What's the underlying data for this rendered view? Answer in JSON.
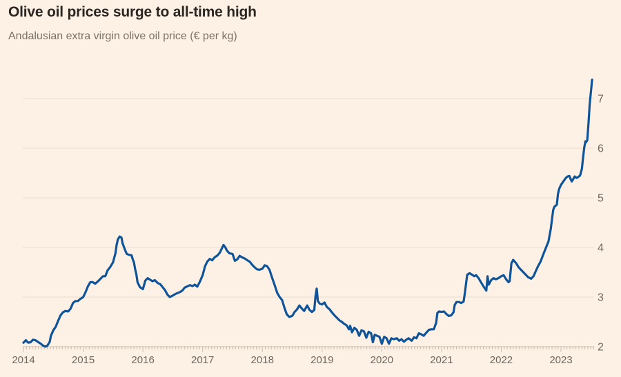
{
  "chart_data": {
    "type": "line",
    "title": "Olive oil prices surge to all-time high",
    "subtitle": "Andalusian extra virgin olive oil price (€ per kg)",
    "xlabel": "",
    "ylabel": "€ per kg",
    "x_range": [
      2014,
      2023.55
    ],
    "y_range": [
      2,
      7.5
    ],
    "x_ticks": [
      2014,
      2015,
      2016,
      2017,
      2018,
      2019,
      2020,
      2021,
      2022,
      2023
    ],
    "y_ticks": [
      2,
      3,
      4,
      5,
      6,
      7
    ],
    "grid": "horizontal",
    "legend": "none",
    "line_color": "#0f5499",
    "background_color": "#fdf0e4",
    "series": [
      {
        "name": "Andalusian extra virgin olive oil price (€ per kg)",
        "points": [
          [
            2014.0,
            2.08
          ],
          [
            2014.04,
            2.13
          ],
          [
            2014.08,
            2.08
          ],
          [
            2014.12,
            2.09
          ],
          [
            2014.16,
            2.14
          ],
          [
            2014.2,
            2.13
          ],
          [
            2014.25,
            2.09
          ],
          [
            2014.29,
            2.06
          ],
          [
            2014.33,
            2.02
          ],
          [
            2014.37,
            2.0
          ],
          [
            2014.4,
            2.02
          ],
          [
            2014.44,
            2.1
          ],
          [
            2014.46,
            2.22
          ],
          [
            2014.5,
            2.33
          ],
          [
            2014.54,
            2.4
          ],
          [
            2014.58,
            2.52
          ],
          [
            2014.62,
            2.63
          ],
          [
            2014.66,
            2.69
          ],
          [
            2014.7,
            2.72
          ],
          [
            2014.75,
            2.71
          ],
          [
            2014.79,
            2.77
          ],
          [
            2014.83,
            2.88
          ],
          [
            2014.87,
            2.92
          ],
          [
            2014.91,
            2.92
          ],
          [
            2014.95,
            2.96
          ],
          [
            2015.0,
            3.0
          ],
          [
            2015.04,
            3.1
          ],
          [
            2015.08,
            3.22
          ],
          [
            2015.12,
            3.3
          ],
          [
            2015.16,
            3.3
          ],
          [
            2015.2,
            3.27
          ],
          [
            2015.25,
            3.32
          ],
          [
            2015.29,
            3.37
          ],
          [
            2015.33,
            3.42
          ],
          [
            2015.37,
            3.42
          ],
          [
            2015.41,
            3.54
          ],
          [
            2015.45,
            3.6
          ],
          [
            2015.5,
            3.7
          ],
          [
            2015.54,
            3.88
          ],
          [
            2015.56,
            4.05
          ],
          [
            2015.58,
            4.16
          ],
          [
            2015.61,
            4.22
          ],
          [
            2015.64,
            4.2
          ],
          [
            2015.66,
            4.08
          ],
          [
            2015.7,
            3.95
          ],
          [
            2015.73,
            3.87
          ],
          [
            2015.77,
            3.85
          ],
          [
            2015.81,
            3.84
          ],
          [
            2015.83,
            3.76
          ],
          [
            2015.85,
            3.7
          ],
          [
            2015.87,
            3.56
          ],
          [
            2015.89,
            3.46
          ],
          [
            2015.91,
            3.3
          ],
          [
            2015.95,
            3.2
          ],
          [
            2016.0,
            3.16
          ],
          [
            2016.04,
            3.33
          ],
          [
            2016.08,
            3.38
          ],
          [
            2016.12,
            3.35
          ],
          [
            2016.16,
            3.32
          ],
          [
            2016.2,
            3.34
          ],
          [
            2016.25,
            3.28
          ],
          [
            2016.29,
            3.26
          ],
          [
            2016.33,
            3.2
          ],
          [
            2016.37,
            3.14
          ],
          [
            2016.41,
            3.05
          ],
          [
            2016.45,
            3.0
          ],
          [
            2016.5,
            3.03
          ],
          [
            2016.54,
            3.06
          ],
          [
            2016.58,
            3.08
          ],
          [
            2016.62,
            3.1
          ],
          [
            2016.66,
            3.13
          ],
          [
            2016.7,
            3.19
          ],
          [
            2016.75,
            3.22
          ],
          [
            2016.79,
            3.24
          ],
          [
            2016.83,
            3.22
          ],
          [
            2016.87,
            3.25
          ],
          [
            2016.91,
            3.21
          ],
          [
            2016.95,
            3.3
          ],
          [
            2017.0,
            3.44
          ],
          [
            2017.04,
            3.62
          ],
          [
            2017.08,
            3.72
          ],
          [
            2017.12,
            3.77
          ],
          [
            2017.16,
            3.74
          ],
          [
            2017.2,
            3.8
          ],
          [
            2017.25,
            3.84
          ],
          [
            2017.29,
            3.9
          ],
          [
            2017.33,
            4.0
          ],
          [
            2017.35,
            4.05
          ],
          [
            2017.38,
            4.0
          ],
          [
            2017.41,
            3.93
          ],
          [
            2017.45,
            3.88
          ],
          [
            2017.5,
            3.87
          ],
          [
            2017.54,
            3.73
          ],
          [
            2017.58,
            3.76
          ],
          [
            2017.62,
            3.83
          ],
          [
            2017.66,
            3.8
          ],
          [
            2017.7,
            3.78
          ],
          [
            2017.75,
            3.74
          ],
          [
            2017.79,
            3.71
          ],
          [
            2017.83,
            3.65
          ],
          [
            2017.87,
            3.6
          ],
          [
            2017.91,
            3.56
          ],
          [
            2017.95,
            3.55
          ],
          [
            2018.0,
            3.57
          ],
          [
            2018.04,
            3.64
          ],
          [
            2018.08,
            3.62
          ],
          [
            2018.12,
            3.55
          ],
          [
            2018.16,
            3.4
          ],
          [
            2018.2,
            3.26
          ],
          [
            2018.25,
            3.08
          ],
          [
            2018.29,
            3.0
          ],
          [
            2018.33,
            2.94
          ],
          [
            2018.37,
            2.78
          ],
          [
            2018.41,
            2.65
          ],
          [
            2018.45,
            2.6
          ],
          [
            2018.5,
            2.62
          ],
          [
            2018.54,
            2.7
          ],
          [
            2018.58,
            2.75
          ],
          [
            2018.62,
            2.83
          ],
          [
            2018.66,
            2.77
          ],
          [
            2018.7,
            2.72
          ],
          [
            2018.75,
            2.83
          ],
          [
            2018.79,
            2.74
          ],
          [
            2018.83,
            2.7
          ],
          [
            2018.87,
            2.74
          ],
          [
            2018.89,
            3.02
          ],
          [
            2018.91,
            3.17
          ],
          [
            2018.93,
            2.92
          ],
          [
            2018.96,
            2.87
          ],
          [
            2019.0,
            2.85
          ],
          [
            2019.04,
            2.89
          ],
          [
            2019.08,
            2.8
          ],
          [
            2019.12,
            2.76
          ],
          [
            2019.16,
            2.7
          ],
          [
            2019.2,
            2.64
          ],
          [
            2019.25,
            2.58
          ],
          [
            2019.29,
            2.53
          ],
          [
            2019.33,
            2.5
          ],
          [
            2019.37,
            2.46
          ],
          [
            2019.41,
            2.43
          ],
          [
            2019.45,
            2.35
          ],
          [
            2019.47,
            2.42
          ],
          [
            2019.5,
            2.29
          ],
          [
            2019.54,
            2.38
          ],
          [
            2019.58,
            2.34
          ],
          [
            2019.62,
            2.22
          ],
          [
            2019.66,
            2.33
          ],
          [
            2019.7,
            2.31
          ],
          [
            2019.74,
            2.18
          ],
          [
            2019.78,
            2.3
          ],
          [
            2019.82,
            2.27
          ],
          [
            2019.85,
            2.09
          ],
          [
            2019.88,
            2.24
          ],
          [
            2019.92,
            2.22
          ],
          [
            2019.96,
            2.2
          ],
          [
            2020.0,
            2.06
          ],
          [
            2020.04,
            2.2
          ],
          [
            2020.08,
            2.17
          ],
          [
            2020.12,
            2.06
          ],
          [
            2020.16,
            2.17
          ],
          [
            2020.2,
            2.15
          ],
          [
            2020.25,
            2.17
          ],
          [
            2020.29,
            2.12
          ],
          [
            2020.33,
            2.15
          ],
          [
            2020.37,
            2.1
          ],
          [
            2020.41,
            2.14
          ],
          [
            2020.45,
            2.17
          ],
          [
            2020.5,
            2.12
          ],
          [
            2020.54,
            2.19
          ],
          [
            2020.58,
            2.17
          ],
          [
            2020.62,
            2.27
          ],
          [
            2020.66,
            2.25
          ],
          [
            2020.7,
            2.22
          ],
          [
            2020.75,
            2.29
          ],
          [
            2020.79,
            2.34
          ],
          [
            2020.83,
            2.35
          ],
          [
            2020.87,
            2.35
          ],
          [
            2020.91,
            2.48
          ],
          [
            2020.93,
            2.68
          ],
          [
            2020.96,
            2.71
          ],
          [
            2021.0,
            2.7
          ],
          [
            2021.04,
            2.71
          ],
          [
            2021.08,
            2.66
          ],
          [
            2021.12,
            2.62
          ],
          [
            2021.16,
            2.63
          ],
          [
            2021.2,
            2.69
          ],
          [
            2021.22,
            2.84
          ],
          [
            2021.25,
            2.9
          ],
          [
            2021.29,
            2.9
          ],
          [
            2021.33,
            2.88
          ],
          [
            2021.37,
            2.91
          ],
          [
            2021.39,
            3.08
          ],
          [
            2021.43,
            3.45
          ],
          [
            2021.47,
            3.48
          ],
          [
            2021.51,
            3.45
          ],
          [
            2021.55,
            3.42
          ],
          [
            2021.58,
            3.44
          ],
          [
            2021.62,
            3.38
          ],
          [
            2021.66,
            3.3
          ],
          [
            2021.7,
            3.22
          ],
          [
            2021.75,
            3.13
          ],
          [
            2021.77,
            3.42
          ],
          [
            2021.79,
            3.25
          ],
          [
            2021.83,
            3.34
          ],
          [
            2021.87,
            3.38
          ],
          [
            2021.91,
            3.36
          ],
          [
            2021.95,
            3.38
          ],
          [
            2022.0,
            3.42
          ],
          [
            2022.04,
            3.44
          ],
          [
            2022.08,
            3.36
          ],
          [
            2022.12,
            3.3
          ],
          [
            2022.14,
            3.32
          ],
          [
            2022.17,
            3.68
          ],
          [
            2022.2,
            3.75
          ],
          [
            2022.25,
            3.68
          ],
          [
            2022.29,
            3.6
          ],
          [
            2022.33,
            3.55
          ],
          [
            2022.37,
            3.5
          ],
          [
            2022.41,
            3.45
          ],
          [
            2022.45,
            3.4
          ],
          [
            2022.5,
            3.37
          ],
          [
            2022.54,
            3.42
          ],
          [
            2022.58,
            3.53
          ],
          [
            2022.62,
            3.63
          ],
          [
            2022.66,
            3.72
          ],
          [
            2022.7,
            3.85
          ],
          [
            2022.75,
            4.0
          ],
          [
            2022.79,
            4.12
          ],
          [
            2022.83,
            4.38
          ],
          [
            2022.85,
            4.58
          ],
          [
            2022.87,
            4.76
          ],
          [
            2022.89,
            4.82
          ],
          [
            2022.91,
            4.84
          ],
          [
            2022.93,
            4.86
          ],
          [
            2022.95,
            5.08
          ],
          [
            2022.97,
            5.18
          ],
          [
            2023.0,
            5.26
          ],
          [
            2023.04,
            5.33
          ],
          [
            2023.08,
            5.4
          ],
          [
            2023.11,
            5.43
          ],
          [
            2023.14,
            5.44
          ],
          [
            2023.16,
            5.38
          ],
          [
            2023.18,
            5.33
          ],
          [
            2023.2,
            5.37
          ],
          [
            2023.23,
            5.43
          ],
          [
            2023.26,
            5.4
          ],
          [
            2023.29,
            5.42
          ],
          [
            2023.32,
            5.45
          ],
          [
            2023.35,
            5.58
          ],
          [
            2023.37,
            5.82
          ],
          [
            2023.39,
            6.02
          ],
          [
            2023.41,
            6.14
          ],
          [
            2023.42,
            6.12
          ],
          [
            2023.44,
            6.16
          ],
          [
            2023.46,
            6.5
          ],
          [
            2023.48,
            6.88
          ],
          [
            2023.5,
            7.12
          ],
          [
            2023.52,
            7.38
          ]
        ]
      }
    ]
  }
}
